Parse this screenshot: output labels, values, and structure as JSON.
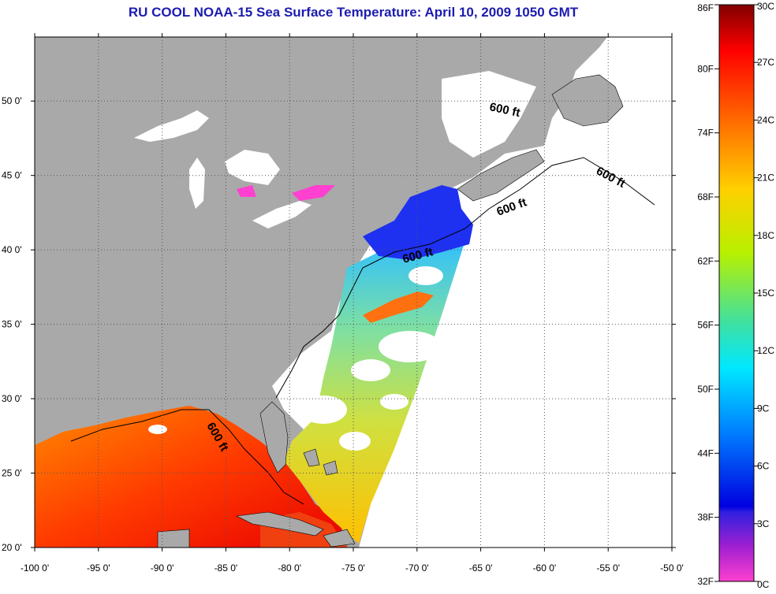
{
  "title": "RU COOL  NOAA-15  Sea Surface Temperature:  April 10, 2009 1050 GMT",
  "map": {
    "lon_ticks": [
      "-100 0'",
      "-95 0'",
      "-90 0'",
      "-85 0'",
      "-80 0'",
      "-75 0'",
      "-70 0'",
      "-65 0'",
      "-60 0'",
      "-55 0'",
      "-50 0'"
    ],
    "lat_ticks": [
      "50 0'",
      "45 0'",
      "40 0'",
      "35 0'",
      "30 0'",
      "25 0'",
      "20 0'"
    ],
    "isobath_labels": [
      "600 ft",
      "600 ft",
      "600 ft",
      "600 ft",
      "600 ft"
    ]
  },
  "colorbar": {
    "fahrenheit_labels": [
      "86F",
      "80F",
      "74F",
      "68F",
      "62F",
      "56F",
      "50F",
      "44F",
      "38F",
      "32F"
    ],
    "celsius_labels": [
      "30C",
      "27C",
      "24C",
      "21C",
      "18C",
      "15C",
      "12C",
      "9C",
      "6C",
      "3C",
      "0C"
    ]
  },
  "colors": {
    "land": "#a9a9a9",
    "title": "#1c1cb0",
    "ocean_nodata": "#ffffff",
    "cloud": "#ffffff"
  }
}
